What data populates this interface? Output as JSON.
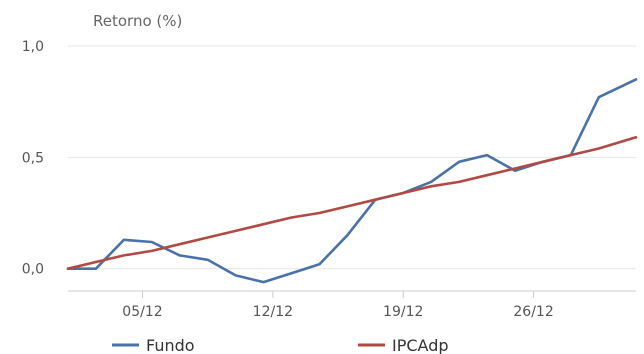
{
  "chart_data": {
    "type": "line",
    "ylabel": "Retorno (%)",
    "ylim": [
      -0.1,
      1.0
    ],
    "yticks": [
      {
        "value": 1.0,
        "label": "1,0"
      },
      {
        "value": 0.5,
        "label": "0,5"
      },
      {
        "value": 0.0,
        "label": "0,0"
      }
    ],
    "xlim": [
      1,
      31.5
    ],
    "xticks": [
      {
        "value": 5,
        "label": "05/12"
      },
      {
        "value": 12,
        "label": "12/12"
      },
      {
        "value": 19,
        "label": "19/12"
      },
      {
        "value": 26,
        "label": "26/12"
      }
    ],
    "grid": true,
    "legend_position": "bottom",
    "series": [
      {
        "name": "Fundo",
        "color": "#4a72a8",
        "x": [
          1,
          2.5,
          4,
          5.5,
          7,
          8.5,
          10,
          11.5,
          13,
          14.5,
          16,
          17.5,
          19,
          20.5,
          22,
          23.5,
          25,
          26.5,
          28,
          29.5,
          31.5
        ],
        "y": [
          0.0,
          0.0,
          0.13,
          0.12,
          0.06,
          0.04,
          -0.03,
          -0.06,
          -0.02,
          0.02,
          0.15,
          0.31,
          0.34,
          0.39,
          0.48,
          0.51,
          0.44,
          0.48,
          0.51,
          0.77,
          0.85
        ]
      },
      {
        "name": "IPCAdp",
        "color": "#b04a45",
        "x": [
          1,
          2.5,
          4,
          5.5,
          7,
          8.5,
          10,
          11.5,
          13,
          14.5,
          16,
          17.5,
          19,
          20.5,
          22,
          23.5,
          25,
          26.5,
          28,
          29.5,
          31.5
        ],
        "y": [
          0.0,
          0.03,
          0.06,
          0.08,
          0.11,
          0.14,
          0.17,
          0.2,
          0.23,
          0.25,
          0.28,
          0.31,
          0.34,
          0.37,
          0.39,
          0.42,
          0.45,
          0.48,
          0.51,
          0.54,
          0.59
        ]
      }
    ]
  }
}
